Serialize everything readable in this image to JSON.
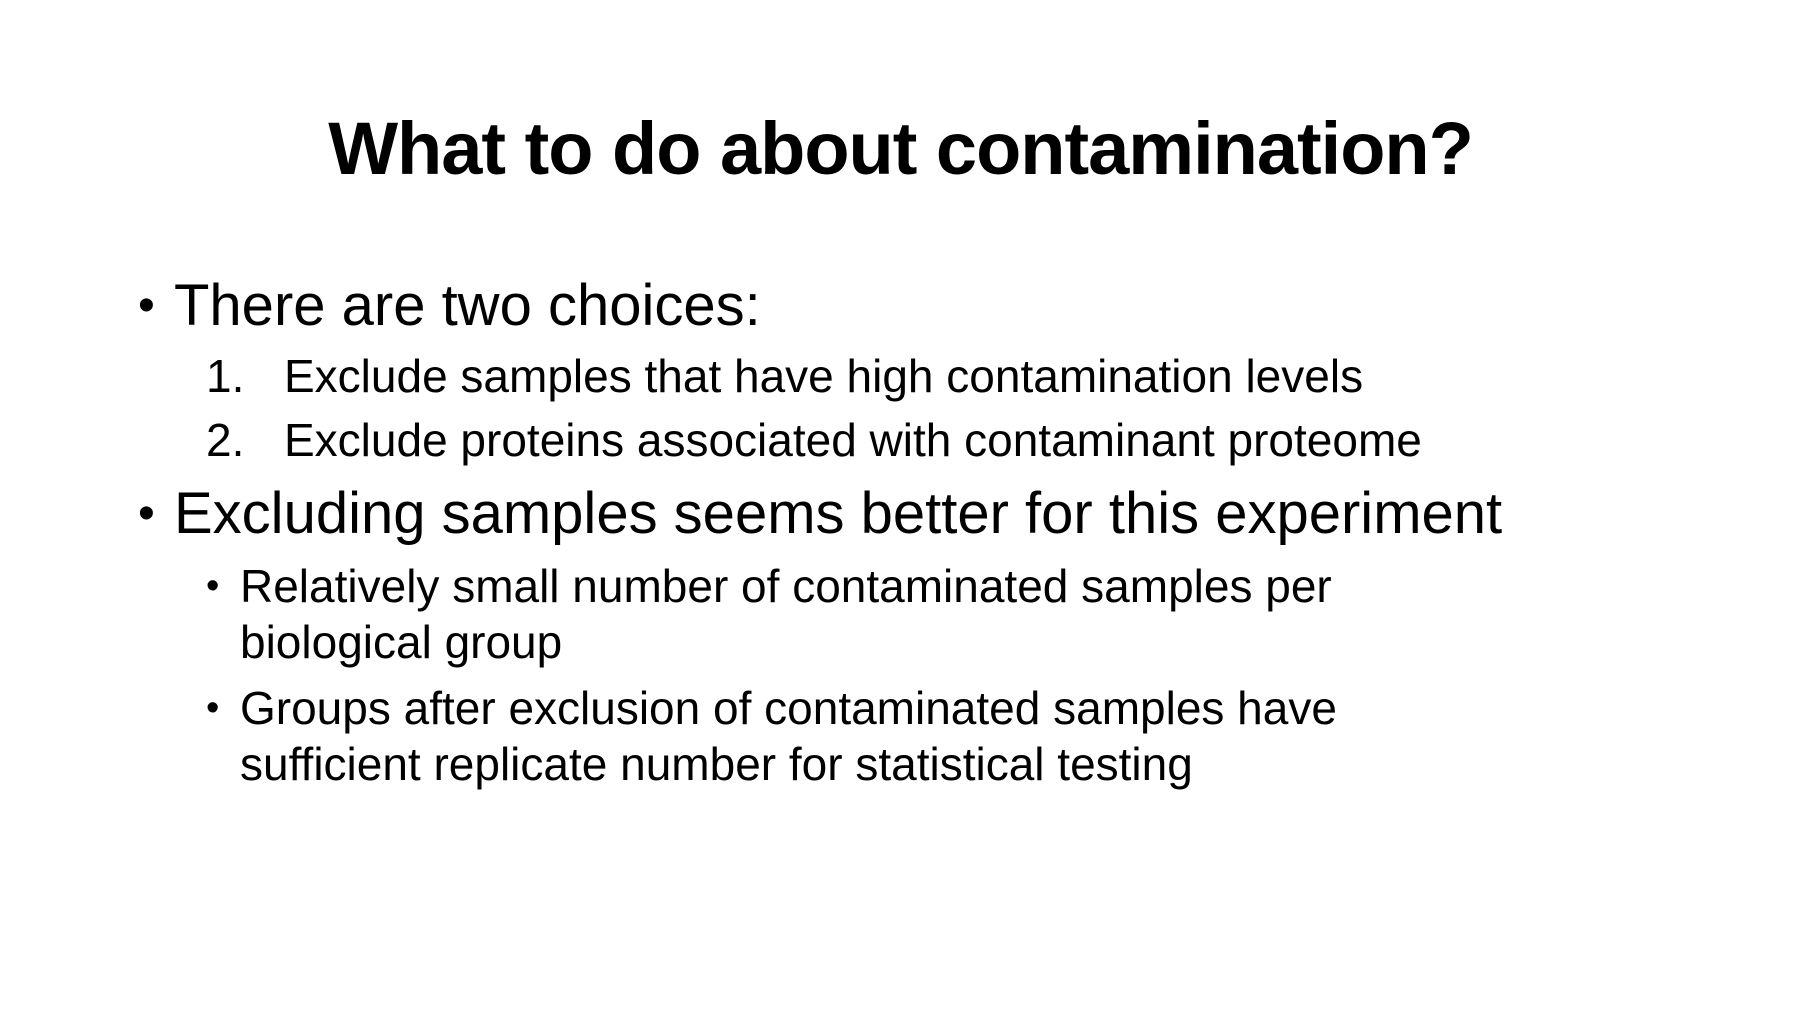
{
  "slide": {
    "title": "What to do about contamination?",
    "bullets": [
      {
        "text": "There are two choices:",
        "numbered": [
          {
            "num": "1.",
            "text": "Exclude samples that have high contamination levels"
          },
          {
            "num": "2.",
            "text": "Exclude proteins associated with contaminant proteome"
          }
        ]
      },
      {
        "text": "Excluding samples seems better for this experiment",
        "sub": [
          {
            "text": "Relatively small number of contaminated samples per biological group"
          },
          {
            "text": "Groups after exclusion of contaminated samples have sufficient replicate number for statistical testing"
          }
        ]
      }
    ],
    "bullet_glyph": "•"
  }
}
